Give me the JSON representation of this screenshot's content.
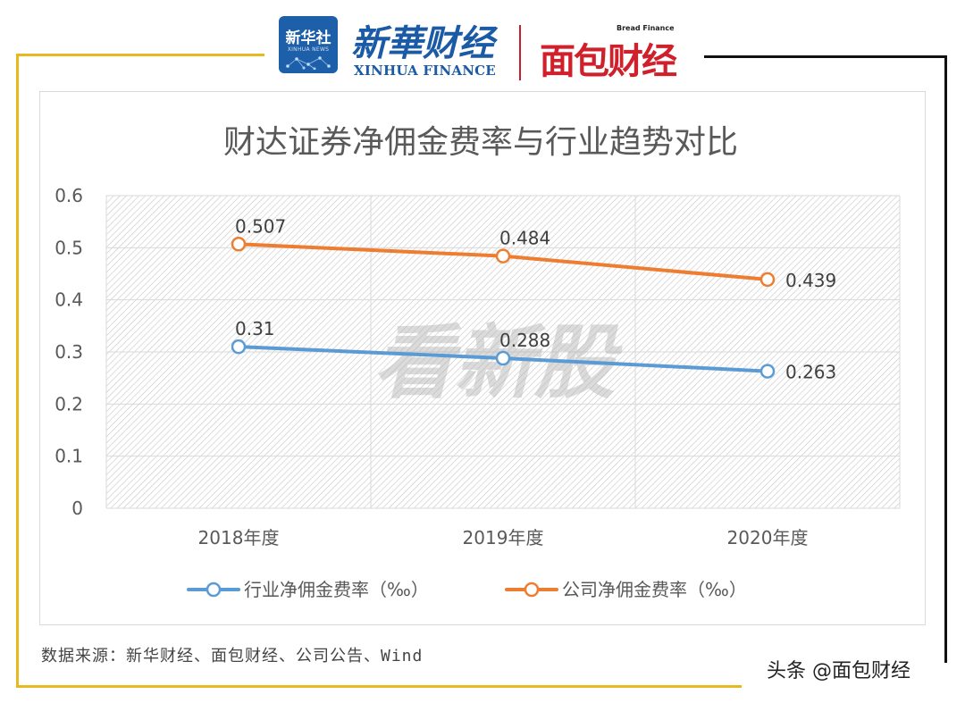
{
  "header": {
    "xinhua_badge_cn": "新华社",
    "xinhua_badge_en": "XINHUA NEWS",
    "xinhua_finance_cn": "新華财经",
    "xinhua_finance_en": "XINHUA FINANCE",
    "bread_finance_en": "Bread Finance",
    "bread_finance_cn": "面包财经"
  },
  "chart_data": {
    "type": "line",
    "title": "财达证券净佣金费率与行业趋势对比",
    "categories": [
      "2018年度",
      "2019年度",
      "2020年度"
    ],
    "series": [
      {
        "name": "行业净佣金费率（‰）",
        "values": [
          0.31,
          0.288,
          0.263
        ],
        "labels": [
          "0.31",
          "0.288",
          "0.263"
        ],
        "color": "#5b9bd5"
      },
      {
        "name": "公司净佣金费率（‰）",
        "values": [
          0.507,
          0.484,
          0.439
        ],
        "labels": [
          "0.507",
          "0.484",
          "0.439"
        ],
        "color": "#ed7d31"
      }
    ],
    "yticks": [
      "0",
      "0.1",
      "0.2",
      "0.3",
      "0.4",
      "0.5",
      "0.6"
    ],
    "ylim": [
      0,
      0.6
    ],
    "grid": true,
    "legend_position": "bottom",
    "watermark": "看新股"
  },
  "footer": {
    "source": "数据来源：新华财经、面包财经、公司公告、Wind",
    "platform_mark": "头条 @面包财经"
  },
  "colors": {
    "frame": "#e8b820",
    "title_text": "#595959",
    "axis_text": "#595959"
  }
}
